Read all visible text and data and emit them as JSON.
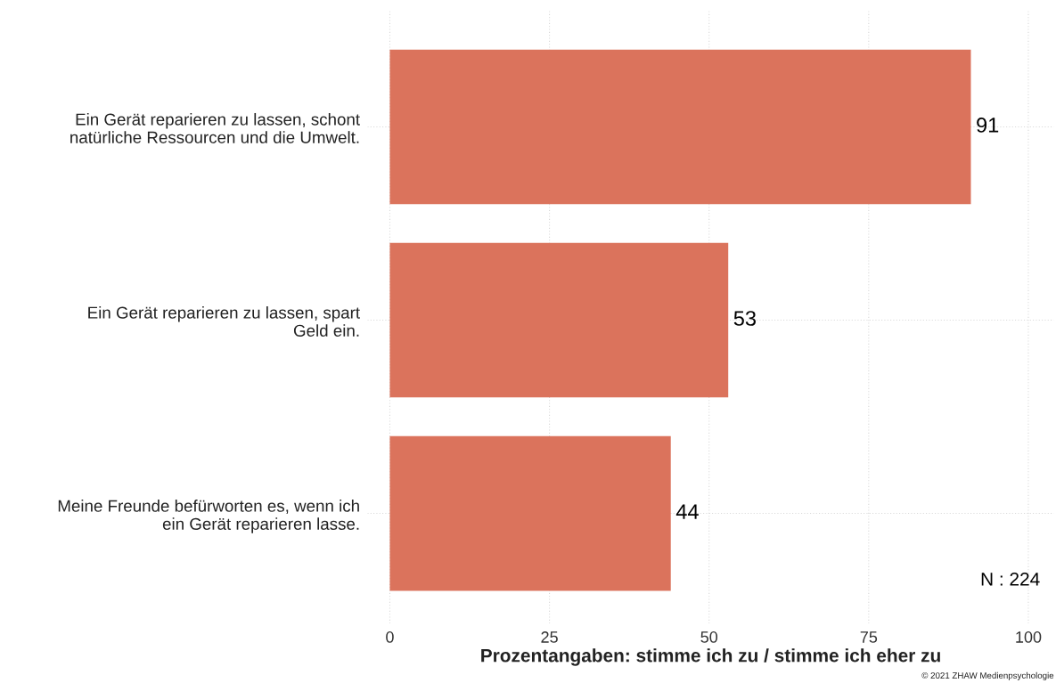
{
  "chart_data": {
    "type": "bar",
    "orientation": "horizontal",
    "xlabel": "Prozentangaben: stimme ich zu / stimme ich eher zu",
    "categories": [
      "Ein Gerät reparieren zu lassen, schont\nnatürliche Ressourcen und die Umwelt.",
      "Ein Gerät reparieren zu lassen, spart\nGeld ein.",
      "Meine Freunde befürworten es, wenn ich\nein Gerät reparieren lasse."
    ],
    "values": [
      91,
      53,
      44
    ],
    "color": "#db735c",
    "data_labels": true,
    "xlim": [
      -3.5,
      104
    ],
    "xticks": [
      0,
      25,
      50,
      75,
      100
    ],
    "grid": true,
    "legend": false,
    "annotations": [
      "N : 224",
      "© 2021 ZHAW Medienpsychologie"
    ]
  }
}
